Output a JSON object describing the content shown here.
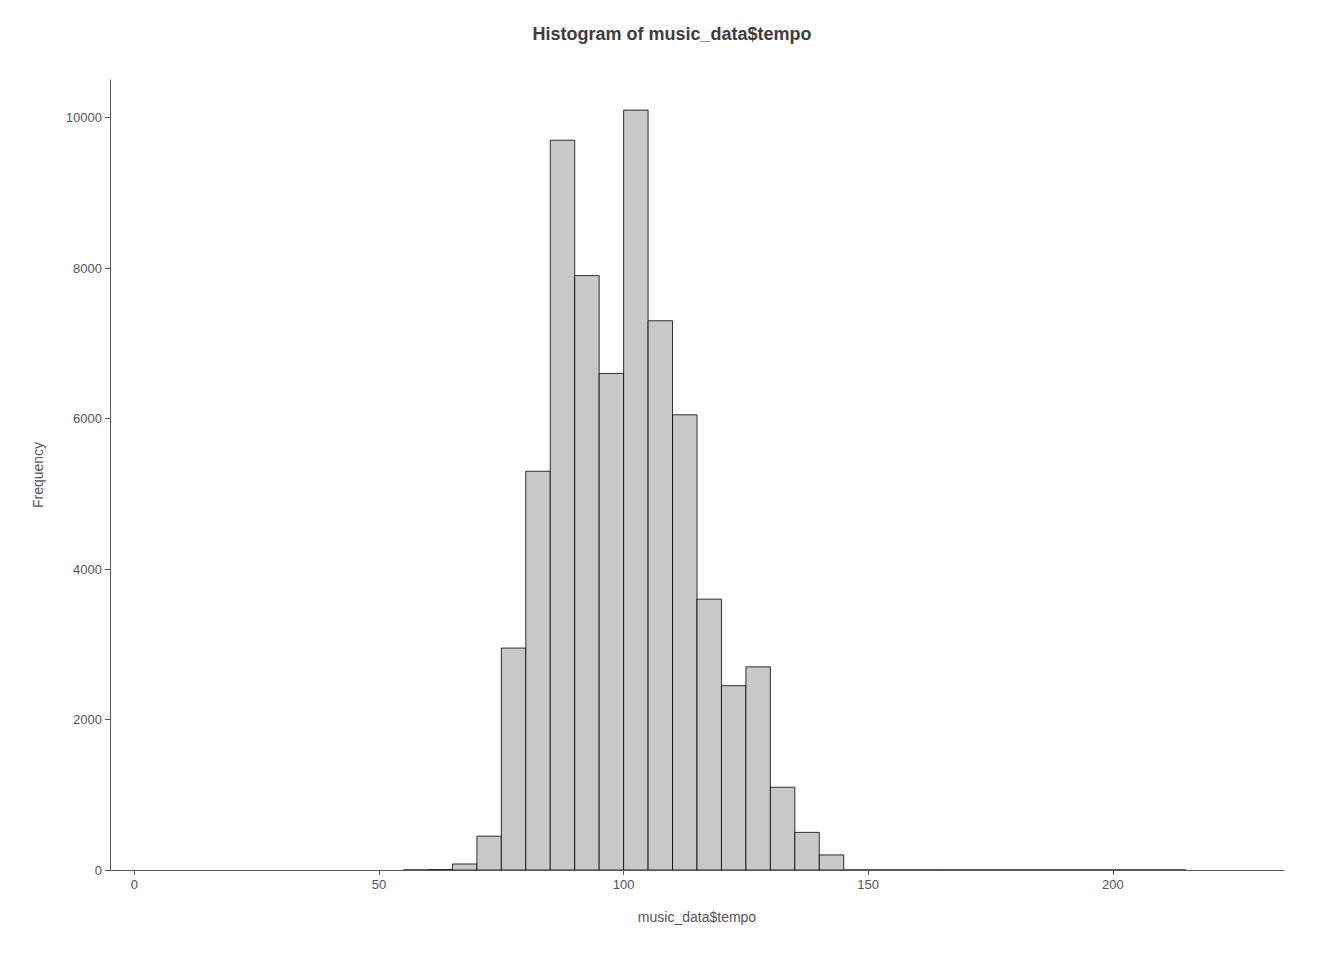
{
  "chart_data": {
    "type": "histogram",
    "title": "Histogram of music_data$tempo",
    "xlabel": "music_data$tempo",
    "ylabel": "Frequency",
    "bins": [
      55,
      60,
      65,
      70,
      75,
      80,
      85,
      90,
      95,
      100,
      105,
      110,
      115,
      120,
      125,
      130,
      135,
      140,
      145,
      150,
      155,
      160,
      165,
      170,
      175,
      180,
      185,
      190,
      195,
      200,
      205,
      210,
      215
    ],
    "values": [
      0,
      5,
      80,
      450,
      2950,
      5300,
      9700,
      7900,
      6600,
      10100,
      7300,
      6050,
      3600,
      2450,
      2700,
      1100,
      500,
      200,
      0,
      0,
      0,
      0,
      0,
      0,
      0,
      0,
      0,
      0,
      0,
      0,
      0,
      0
    ],
    "color": "#c8c8c8",
    "xlim": [
      -5,
      235
    ],
    "xticks": [
      0,
      50,
      100,
      150,
      200
    ],
    "ylim": [
      0,
      10500
    ],
    "yticks": [
      0,
      2000,
      4000,
      6000,
      8000,
      10000
    ],
    "grid": false
  }
}
